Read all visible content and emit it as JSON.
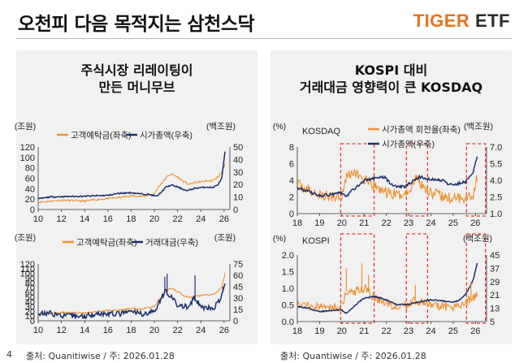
{
  "header": {
    "title": "오천피 다음 목적지는 삼천스닥",
    "brand_1": "TIGER",
    "brand_2": " ETF"
  },
  "page_number": "4",
  "left_panel": {
    "title_line1": "주식시장 리레이팅이",
    "title_line2": "만든 머니무브",
    "source": "출처: Quanitiwise / 주: 2026.01.28"
  },
  "right_panel": {
    "title_line1": "KOSPI 대비",
    "title_line2": "거래대금 영향력이 큰 KOSDAQ",
    "source": "출처: Quantiwise / 주: 2026.01.28"
  },
  "colors": {
    "orange": "#f0902c",
    "navy": "#1c2f6e",
    "highlight": "#e0392b"
  },
  "chart_data": [
    {
      "type": "line",
      "legend": [
        "고객예탁금(좌축)",
        "시가총액(우축)"
      ],
      "y_left_label": "(조원)",
      "y_right_label": "(백조원)",
      "y_left": [
        0,
        120
      ],
      "y_left_ticks": [
        0,
        20,
        40,
        60,
        80,
        100,
        120
      ],
      "y_right": [
        0,
        50
      ],
      "y_right_ticks": [
        0,
        10,
        20,
        30,
        40,
        50
      ],
      "x_range": [
        2010,
        2026.5
      ],
      "x_ticks": [
        "10",
        "12",
        "14",
        "16",
        "18",
        "20",
        "22",
        "24",
        "26"
      ],
      "series": [
        {
          "name": "고객예탁금(좌축)",
          "axis": "left",
          "color": "#f0902c",
          "noise": 1.8,
          "points": [
            [
              2010,
              14
            ],
            [
              2011,
              16
            ],
            [
              2012,
              18
            ],
            [
              2013,
              17
            ],
            [
              2014,
              16
            ],
            [
              2015,
              19
            ],
            [
              2016,
              21
            ],
            [
              2017,
              23
            ],
            [
              2018,
              26
            ],
            [
              2019,
              25
            ],
            [
              2020,
              30
            ],
            [
              2020.4,
              45
            ],
            [
              2020.8,
              55
            ],
            [
              2021.2,
              65
            ],
            [
              2021.5,
              68
            ],
            [
              2022,
              62
            ],
            [
              2022.5,
              54
            ],
            [
              2023,
              48
            ],
            [
              2023.5,
              52
            ],
            [
              2024,
              53
            ],
            [
              2024.5,
              55
            ],
            [
              2025,
              55
            ],
            [
              2025.5,
              63
            ],
            [
              2025.8,
              72
            ],
            [
              2026.08,
              88
            ]
          ]
        },
        {
          "name": "시가총액(우축)",
          "axis": "right",
          "color": "#1c2f6e",
          "noise": 0.5,
          "points": [
            [
              2010,
              8.5
            ],
            [
              2011,
              10
            ],
            [
              2012,
              10.3
            ],
            [
              2013,
              10.5
            ],
            [
              2014,
              10.6
            ],
            [
              2015,
              11
            ],
            [
              2016,
              11.3
            ],
            [
              2017,
              13
            ],
            [
              2018,
              13.5
            ],
            [
              2018.8,
              12.5
            ],
            [
              2019.5,
              12.2
            ],
            [
              2020.2,
              10.5
            ],
            [
              2020.5,
              13
            ],
            [
              2021,
              18
            ],
            [
              2021.5,
              19.5
            ],
            [
              2022,
              18
            ],
            [
              2022.8,
              15
            ],
            [
              2023.5,
              17
            ],
            [
              2024,
              17.5
            ],
            [
              2024.5,
              18
            ],
            [
              2025,
              17.5
            ],
            [
              2025.5,
              20
            ],
            [
              2025.8,
              25
            ],
            [
              2026.08,
              46
            ]
          ]
        }
      ]
    },
    {
      "type": "line",
      "legend": [
        "고객예탁금(좌축)",
        "거래대금(우축)"
      ],
      "y_left_label": "(조원)",
      "y_right_label": "(조원)",
      "y_left": [
        0,
        120
      ],
      "y_left_ticks": [
        0,
        10,
        20,
        30,
        40,
        50,
        60,
        70,
        80,
        90,
        100,
        110,
        120
      ],
      "y_left_tick_labels": [
        "0",
        "10",
        "20",
        "30",
        "40",
        "50",
        "60",
        "70",
        "80",
        "90",
        "100",
        "110",
        "120"
      ],
      "y_right": [
        0,
        75
      ],
      "y_right_ticks": [
        0,
        15,
        30,
        45,
        60,
        75
      ],
      "x_range": [
        2010,
        2026.5
      ],
      "x_ticks": [
        "10",
        "12",
        "14",
        "16",
        "18",
        "20",
        "22",
        "24",
        "26"
      ],
      "series": [
        {
          "name": "고객예탁금(좌축)",
          "axis": "left",
          "color": "#f0902c",
          "noise": 1.8,
          "points": [
            [
              2010,
              14
            ],
            [
              2011,
              16
            ],
            [
              2012,
              18
            ],
            [
              2013,
              17
            ],
            [
              2014,
              16
            ],
            [
              2015,
              19
            ],
            [
              2016,
              21
            ],
            [
              2017,
              23
            ],
            [
              2018,
              26
            ],
            [
              2019,
              25
            ],
            [
              2020,
              30
            ],
            [
              2020.4,
              45
            ],
            [
              2020.8,
              55
            ],
            [
              2021.2,
              65
            ],
            [
              2021.5,
              68
            ],
            [
              2022,
              62
            ],
            [
              2022.5,
              54
            ],
            [
              2023,
              48
            ],
            [
              2023.5,
              52
            ],
            [
              2024,
              53
            ],
            [
              2024.5,
              55
            ],
            [
              2025,
              55
            ],
            [
              2025.5,
              63
            ],
            [
              2025.8,
              72
            ],
            [
              2026.08,
              100
            ]
          ]
        },
        {
          "name": "거래대금(우축)",
          "axis": "right",
          "color": "#1c2f6e",
          "noise": 3.5,
          "points": [
            [
              2010,
              9
            ],
            [
              2011,
              10
            ],
            [
              2012,
              7
            ],
            [
              2013,
              6
            ],
            [
              2014,
              6
            ],
            [
              2015,
              10
            ],
            [
              2016,
              9
            ],
            [
              2017,
              9
            ],
            [
              2018,
              12
            ],
            [
              2019,
              9
            ],
            [
              2020,
              12
            ],
            [
              2020.5,
              28
            ],
            [
              2021,
              40
            ],
            [
              2021.5,
              30
            ],
            [
              2022,
              20
            ],
            [
              2023,
              18
            ],
            [
              2023.4,
              30
            ],
            [
              2024,
              19
            ],
            [
              2024.5,
              17
            ],
            [
              2025,
              15
            ],
            [
              2025.5,
              24
            ],
            [
              2025.8,
              32
            ],
            [
              2026.08,
              48
            ]
          ]
        }
      ],
      "spikes": [
        {
          "x": 2020.9,
          "y": 58
        },
        {
          "x": 2021.1,
          "y": 62
        },
        {
          "x": 2023.5,
          "y": 60
        },
        {
          "x": 2025.9,
          "y": 45
        }
      ]
    },
    {
      "type": "line",
      "label": "KOSDAQ",
      "legend": [
        "시가총액 회전율(좌축)",
        "시가총액(우축)"
      ],
      "y_left_label": "(%)",
      "y_right_label": "(백조원)",
      "y_left": [
        0,
        8
      ],
      "y_left_ticks": [
        0,
        2,
        4,
        6,
        8
      ],
      "y_right": [
        1.0,
        7.0
      ],
      "y_right_ticks": [
        1.0,
        2.5,
        4.0,
        5.5,
        7.0
      ],
      "y_right_tick_labels": [
        "1.0",
        "2.5",
        "4.0",
        "5.5",
        "7.0"
      ],
      "x_range": [
        2018,
        2026.5
      ],
      "x_ticks": [
        "18",
        "19",
        "20",
        "21",
        "22",
        "23",
        "24",
        "25",
        "26"
      ],
      "highlights": [
        [
          2019.95,
          2021.45
        ],
        [
          2022.9,
          2023.85
        ],
        [
          2025.6,
          2026.45
        ]
      ],
      "series": [
        {
          "name": "시가총액 회전율(좌축)",
          "axis": "left",
          "color": "#f0902c",
          "noise": 0.7,
          "points": [
            [
              2018,
              3.5
            ],
            [
              2018.5,
              2.8
            ],
            [
              2019,
              2.2
            ],
            [
              2019.5,
              2.0
            ],
            [
              2020,
              2.2
            ],
            [
              2020.2,
              4.5
            ],
            [
              2020.5,
              5
            ],
            [
              2020.8,
              4.5
            ],
            [
              2021,
              4
            ],
            [
              2021.5,
              3.2
            ],
            [
              2022,
              2.5
            ],
            [
              2022.5,
              2.2
            ],
            [
              2023,
              2.5
            ],
            [
              2023.3,
              4.5
            ],
            [
              2023.6,
              3.5
            ],
            [
              2024,
              2.5
            ],
            [
              2024.5,
              2
            ],
            [
              2025,
              1.8
            ],
            [
              2025.5,
              2
            ],
            [
              2025.9,
              2.2
            ],
            [
              2026.08,
              4.5
            ]
          ]
        },
        {
          "name": "시가총액(우축)",
          "axis": "right",
          "color": "#1c2f6e",
          "noise": 0.12,
          "points": [
            [
              2018,
              3.3
            ],
            [
              2018.5,
              3.0
            ],
            [
              2019,
              2.6
            ],
            [
              2019.5,
              2.7
            ],
            [
              2019.9,
              3.0
            ],
            [
              2020.2,
              2.5
            ],
            [
              2020.4,
              3.0
            ],
            [
              2020.8,
              3.6
            ],
            [
              2021,
              4.0
            ],
            [
              2021.5,
              4.2
            ],
            [
              2021.9,
              4.3
            ],
            [
              2022.3,
              3.5
            ],
            [
              2022.8,
              3.4
            ],
            [
              2023.5,
              4.3
            ],
            [
              2023.9,
              4.1
            ],
            [
              2024.5,
              4.0
            ],
            [
              2024.8,
              3.6
            ],
            [
              2025.2,
              3.7
            ],
            [
              2025.6,
              3.9
            ],
            [
              2025.9,
              4.8
            ],
            [
              2026.08,
              6.2
            ]
          ]
        }
      ]
    },
    {
      "type": "line",
      "label": "KOSPI",
      "y_left_label": "(%)",
      "y_right_label": "(백조원)",
      "y_left": [
        0,
        2.0
      ],
      "y_left_ticks": [
        0,
        0.5,
        1.0,
        1.5,
        2.0
      ],
      "y_left_tick_labels": [
        "0.0",
        "0.5",
        "1.0",
        "1.5",
        "2.0"
      ],
      "y_right": [
        5,
        45
      ],
      "y_right_ticks": [
        5,
        13,
        21,
        29,
        37,
        45
      ],
      "x_range": [
        2018,
        2026.5
      ],
      "x_ticks": [
        "18",
        "19",
        "20",
        "21",
        "22",
        "23",
        "24",
        "25",
        "26"
      ],
      "highlights": [
        [
          2019.95,
          2021.45
        ],
        [
          2022.9,
          2023.85
        ],
        [
          2025.6,
          2026.45
        ]
      ],
      "series": [
        {
          "name": "시가총액 회전율(좌축)",
          "axis": "left",
          "color": "#f0902c",
          "noise": 0.14,
          "points": [
            [
              2018,
              0.55
            ],
            [
              2018.5,
              0.5
            ],
            [
              2019,
              0.45
            ],
            [
              2019.5,
              0.42
            ],
            [
              2020,
              0.5
            ],
            [
              2020.2,
              0.9
            ],
            [
              2020.5,
              0.9
            ],
            [
              2020.8,
              0.95
            ],
            [
              2021,
              1.0
            ],
            [
              2021.5,
              0.7
            ],
            [
              2022,
              0.55
            ],
            [
              2022.5,
              0.45
            ],
            [
              2023,
              0.5
            ],
            [
              2023.3,
              0.65
            ],
            [
              2023.6,
              0.55
            ],
            [
              2024,
              0.5
            ],
            [
              2024.5,
              0.45
            ],
            [
              2025,
              0.45
            ],
            [
              2025.5,
              0.55
            ],
            [
              2025.9,
              0.7
            ],
            [
              2026.08,
              0.85
            ]
          ]
        },
        {
          "name": "시가총액(우축)",
          "axis": "right",
          "color": "#1c2f6e",
          "noise": 0.35,
          "points": [
            [
              2018,
              14
            ],
            [
              2018.5,
              13
            ],
            [
              2019,
              11
            ],
            [
              2019.5,
              11.5
            ],
            [
              2020,
              12
            ],
            [
              2020.2,
              10
            ],
            [
              2020.5,
              13.5
            ],
            [
              2020.8,
              17
            ],
            [
              2021,
              19
            ],
            [
              2021.5,
              20
            ],
            [
              2022,
              18
            ],
            [
              2022.5,
              15
            ],
            [
              2023,
              15.5
            ],
            [
              2023.5,
              17
            ],
            [
              2024,
              18
            ],
            [
              2024.5,
              17.5
            ],
            [
              2025,
              16.5
            ],
            [
              2025.3,
              18
            ],
            [
              2025.6,
              22
            ],
            [
              2025.9,
              30
            ],
            [
              2026.08,
              40
            ]
          ]
        }
      ],
      "spikes": [
        {
          "x": 2020.2,
          "y": 1.6
        },
        {
          "x": 2020.9,
          "y": 1.75
        },
        {
          "x": 2021.2,
          "y": 1.4
        },
        {
          "x": 2023.3,
          "y": 1.1
        },
        {
          "x": 2025.8,
          "y": 1.2
        }
      ]
    }
  ]
}
